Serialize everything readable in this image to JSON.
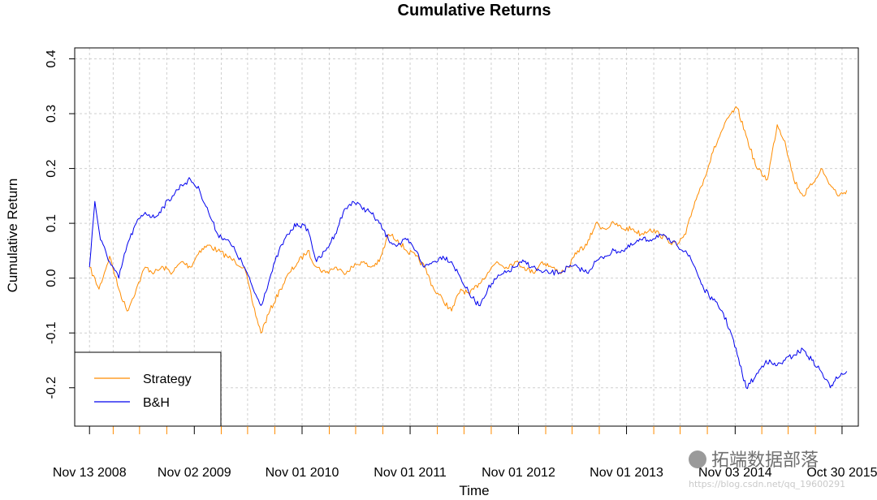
{
  "chart_data": {
    "type": "line",
    "title": "Cumulative Returns",
    "xlabel": "Time",
    "ylabel": "Cumulative Return",
    "x_tick_labels": [
      "Nov 13 2008",
      "Nov 02 2009",
      "Nov 01 2010",
      "Nov 01 2011",
      "Nov 01 2012",
      "Nov 01 2013",
      "Nov 03 2014",
      "Oct 30 2015"
    ],
    "x_tick_dates": [
      "2008-11-13",
      "2009-11-02",
      "2010-11-01",
      "2011-11-01",
      "2012-11-01",
      "2013-11-01",
      "2014-11-03",
      "2015-10-30"
    ],
    "xlim": [
      "2008-09-24",
      "2015-12-24"
    ],
    "ylim": [
      -0.27,
      0.42
    ],
    "y_ticks": [
      -0.2,
      -0.1,
      0.0,
      0.1,
      0.2,
      0.3,
      0.4
    ],
    "y_tick_labels": [
      "-0.2",
      "-0.1",
      "0.0",
      "0.1",
      "0.2",
      "0.3",
      "0.4"
    ],
    "grid": true,
    "legend_position": "bottom-left",
    "series": [
      {
        "name": "Strategy",
        "color": "#ff8c00",
        "points": [
          [
            "2008-11-13",
            0.02
          ],
          [
            "2008-12-15",
            -0.02
          ],
          [
            "2009-01-20",
            0.04
          ],
          [
            "2009-02-20",
            -0.02
          ],
          [
            "2009-03-20",
            -0.06
          ],
          [
            "2009-04-20",
            -0.02
          ],
          [
            "2009-05-20",
            0.02
          ],
          [
            "2009-06-20",
            0.01
          ],
          [
            "2009-07-20",
            0.02
          ],
          [
            "2009-08-20",
            0.01
          ],
          [
            "2009-09-20",
            0.03
          ],
          [
            "2009-10-20",
            0.02
          ],
          [
            "2009-11-20",
            0.05
          ],
          [
            "2009-12-20",
            0.06
          ],
          [
            "2010-01-20",
            0.05
          ],
          [
            "2010-02-20",
            0.04
          ],
          [
            "2010-03-20",
            0.03
          ],
          [
            "2010-04-20",
            0.02
          ],
          [
            "2010-05-20",
            -0.05
          ],
          [
            "2010-06-15",
            -0.1
          ],
          [
            "2010-07-15",
            -0.06
          ],
          [
            "2010-08-20",
            -0.02
          ],
          [
            "2010-09-20",
            0.01
          ],
          [
            "2010-10-20",
            0.03
          ],
          [
            "2010-11-20",
            0.05
          ],
          [
            "2010-12-20",
            0.02
          ],
          [
            "2011-01-20",
            0.01
          ],
          [
            "2011-02-20",
            0.02
          ],
          [
            "2011-03-20",
            0.01
          ],
          [
            "2011-04-20",
            0.02
          ],
          [
            "2011-05-20",
            0.03
          ],
          [
            "2011-06-20",
            0.02
          ],
          [
            "2011-07-20",
            0.03
          ],
          [
            "2011-08-20",
            0.08
          ],
          [
            "2011-09-20",
            0.07
          ],
          [
            "2011-10-20",
            0.05
          ],
          [
            "2011-11-20",
            0.04
          ],
          [
            "2011-12-20",
            0.02
          ],
          [
            "2012-01-20",
            -0.02
          ],
          [
            "2012-02-20",
            -0.04
          ],
          [
            "2012-03-20",
            -0.06
          ],
          [
            "2012-04-20",
            -0.02
          ],
          [
            "2012-05-20",
            -0.03
          ],
          [
            "2012-06-20",
            -0.01
          ],
          [
            "2012-07-20",
            0.01
          ],
          [
            "2012-08-20",
            0.03
          ],
          [
            "2012-09-20",
            0.02
          ],
          [
            "2012-10-20",
            0.03
          ],
          [
            "2012-11-20",
            0.02
          ],
          [
            "2012-12-20",
            0.01
          ],
          [
            "2013-01-20",
            0.03
          ],
          [
            "2013-02-20",
            0.02
          ],
          [
            "2013-03-20",
            0.01
          ],
          [
            "2013-04-20",
            0.02
          ],
          [
            "2013-05-20",
            0.05
          ],
          [
            "2013-06-20",
            0.06
          ],
          [
            "2013-07-20",
            0.1
          ],
          [
            "2013-08-20",
            0.09
          ],
          [
            "2013-09-20",
            0.1
          ],
          [
            "2013-10-20",
            0.09
          ],
          [
            "2013-11-20",
            0.09
          ],
          [
            "2013-12-20",
            0.08
          ],
          [
            "2014-01-20",
            0.09
          ],
          [
            "2014-02-20",
            0.08
          ],
          [
            "2014-03-20",
            0.07
          ],
          [
            "2014-04-20",
            0.06
          ],
          [
            "2014-05-20",
            0.08
          ],
          [
            "2014-06-20",
            0.14
          ],
          [
            "2014-07-20",
            0.18
          ],
          [
            "2014-08-20",
            0.23
          ],
          [
            "2014-09-20",
            0.27
          ],
          [
            "2014-10-20",
            0.3
          ],
          [
            "2014-11-10",
            0.31
          ],
          [
            "2014-12-10",
            0.26
          ],
          [
            "2015-01-15",
            0.2
          ],
          [
            "2015-02-20",
            0.18
          ],
          [
            "2015-03-25",
            0.28
          ],
          [
            "2015-04-20",
            0.25
          ],
          [
            "2015-05-20",
            0.18
          ],
          [
            "2015-06-20",
            0.15
          ],
          [
            "2015-07-20",
            0.17
          ],
          [
            "2015-08-20",
            0.2
          ],
          [
            "2015-09-20",
            0.17
          ],
          [
            "2015-10-20",
            0.15
          ],
          [
            "2015-11-15",
            0.16
          ]
        ]
      },
      {
        "name": "B&H",
        "color": "#0000ee",
        "points": [
          [
            "2008-11-13",
            0.02
          ],
          [
            "2008-12-01",
            0.14
          ],
          [
            "2008-12-20",
            0.07
          ],
          [
            "2009-01-20",
            0.03
          ],
          [
            "2009-02-20",
            0.0
          ],
          [
            "2009-03-20",
            0.06
          ],
          [
            "2009-04-20",
            0.1
          ],
          [
            "2009-05-20",
            0.12
          ],
          [
            "2009-06-20",
            0.11
          ],
          [
            "2009-07-20",
            0.13
          ],
          [
            "2009-08-20",
            0.15
          ],
          [
            "2009-09-20",
            0.17
          ],
          [
            "2009-10-20",
            0.18
          ],
          [
            "2009-11-20",
            0.16
          ],
          [
            "2009-12-20",
            0.12
          ],
          [
            "2010-01-20",
            0.08
          ],
          [
            "2010-02-20",
            0.07
          ],
          [
            "2010-03-20",
            0.05
          ],
          [
            "2010-04-20",
            0.02
          ],
          [
            "2010-05-20",
            -0.02
          ],
          [
            "2010-06-15",
            -0.05
          ],
          [
            "2010-07-15",
            0.0
          ],
          [
            "2010-08-15",
            0.05
          ],
          [
            "2010-09-15",
            0.08
          ],
          [
            "2010-10-15",
            0.1
          ],
          [
            "2010-11-20",
            0.09
          ],
          [
            "2010-12-20",
            0.03
          ],
          [
            "2011-01-20",
            0.05
          ],
          [
            "2011-02-20",
            0.08
          ],
          [
            "2011-03-20",
            0.12
          ],
          [
            "2011-04-20",
            0.14
          ],
          [
            "2011-05-20",
            0.13
          ],
          [
            "2011-06-20",
            0.12
          ],
          [
            "2011-07-20",
            0.1
          ],
          [
            "2011-08-20",
            0.07
          ],
          [
            "2011-09-20",
            0.06
          ],
          [
            "2011-10-20",
            0.07
          ],
          [
            "2011-11-20",
            0.05
          ],
          [
            "2011-12-20",
            0.02
          ],
          [
            "2012-01-20",
            0.03
          ],
          [
            "2012-02-20",
            0.04
          ],
          [
            "2012-03-20",
            0.03
          ],
          [
            "2012-04-20",
            0.0
          ],
          [
            "2012-05-20",
            -0.03
          ],
          [
            "2012-06-20",
            -0.05
          ],
          [
            "2012-07-20",
            -0.02
          ],
          [
            "2012-08-20",
            0.0
          ],
          [
            "2012-09-20",
            0.01
          ],
          [
            "2012-10-20",
            0.02
          ],
          [
            "2012-11-20",
            0.03
          ],
          [
            "2012-12-20",
            0.02
          ],
          [
            "2013-01-20",
            0.01
          ],
          [
            "2013-02-20",
            0.01
          ],
          [
            "2013-03-20",
            0.01
          ],
          [
            "2013-04-20",
            0.02
          ],
          [
            "2013-05-20",
            0.02
          ],
          [
            "2013-06-20",
            0.01
          ],
          [
            "2013-07-20",
            0.03
          ],
          [
            "2013-08-20",
            0.04
          ],
          [
            "2013-09-20",
            0.05
          ],
          [
            "2013-10-20",
            0.05
          ],
          [
            "2013-11-20",
            0.06
          ],
          [
            "2013-12-20",
            0.07
          ],
          [
            "2014-01-20",
            0.07
          ],
          [
            "2014-02-20",
            0.08
          ],
          [
            "2014-03-20",
            0.07
          ],
          [
            "2014-04-20",
            0.06
          ],
          [
            "2014-05-20",
            0.05
          ],
          [
            "2014-06-20",
            0.02
          ],
          [
            "2014-07-20",
            -0.02
          ],
          [
            "2014-08-20",
            -0.04
          ],
          [
            "2014-09-20",
            -0.06
          ],
          [
            "2014-10-20",
            -0.1
          ],
          [
            "2014-11-10",
            -0.14
          ],
          [
            "2014-12-10",
            -0.2
          ],
          [
            "2015-01-10",
            -0.18
          ],
          [
            "2015-02-15",
            -0.15
          ],
          [
            "2015-03-20",
            -0.16
          ],
          [
            "2015-04-20",
            -0.15
          ],
          [
            "2015-05-20",
            -0.14
          ],
          [
            "2015-06-20",
            -0.13
          ],
          [
            "2015-07-20",
            -0.15
          ],
          [
            "2015-08-20",
            -0.17
          ],
          [
            "2015-09-20",
            -0.2
          ],
          [
            "2015-10-10",
            -0.18
          ],
          [
            "2015-11-15",
            -0.17
          ]
        ]
      }
    ]
  },
  "watermark": {
    "brand": "拓端数据部落",
    "url": "https://blog.csdn.net/qq_19600291"
  }
}
